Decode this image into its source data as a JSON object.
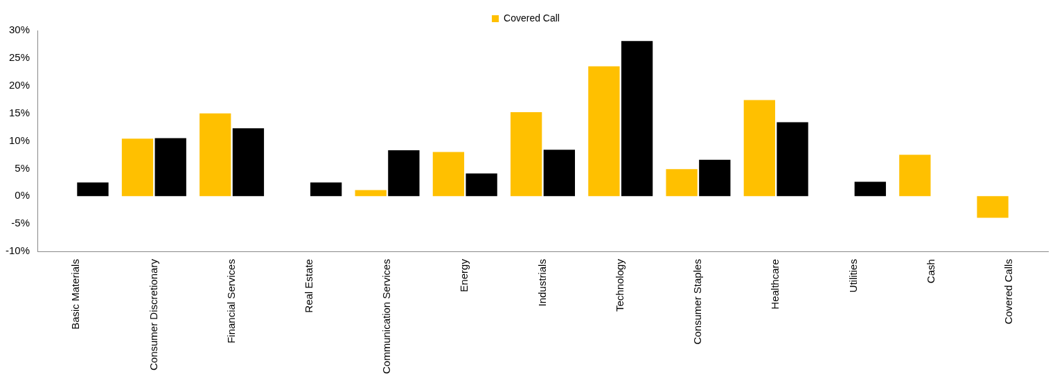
{
  "chart_data": {
    "type": "bar",
    "categories": [
      "Basic Materials",
      "Consumer Discretionary",
      "Financial Services",
      "Real Estate",
      "Communication Services",
      "Energy",
      "Industrials",
      "Technology",
      "Consumer Staples",
      "Healthcare",
      "Utilities",
      "Cash",
      "Covered Calls"
    ],
    "series": [
      {
        "name": "Covered Call",
        "color": "#ffc000",
        "values": [
          0,
          10.4,
          15.0,
          0,
          1.1,
          8.0,
          15.2,
          23.5,
          4.9,
          17.4,
          0,
          7.5,
          -3.9
        ]
      },
      {
        "color": "#000000",
        "values": [
          2.5,
          10.5,
          12.3,
          2.5,
          8.3,
          4.1,
          8.4,
          28.1,
          6.6,
          13.4,
          2.6,
          0,
          0
        ]
      }
    ],
    "ylim": [
      -10,
      30
    ],
    "yticks": [
      {
        "value": -10,
        "label": "-10%"
      },
      {
        "value": -5,
        "label": "-5%"
      },
      {
        "value": 0,
        "label": "0%"
      },
      {
        "value": 5,
        "label": "5%"
      },
      {
        "value": 10,
        "label": "10%"
      },
      {
        "value": 15,
        "label": "15%"
      },
      {
        "value": 20,
        "label": "20%"
      },
      {
        "value": 25,
        "label": "25%"
      },
      {
        "value": 30,
        "label": "30%"
      }
    ],
    "grid": false,
    "legend": "top"
  }
}
